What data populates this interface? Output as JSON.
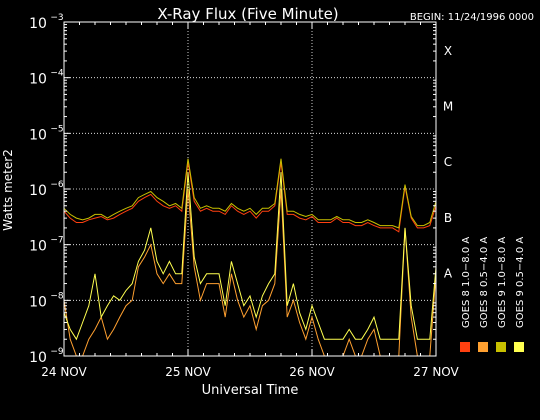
{
  "chart_data": {
    "type": "line",
    "title": "X-Ray Flux (Five Minute)",
    "begin_label": "BEGIN: 11/24/1996 0000",
    "ylabel": "Watts meter2",
    "xlabel": "Universal Time",
    "y_scale": "log",
    "ylim": [
      1e-09,
      0.001
    ],
    "x_range_days": [
      0,
      3
    ],
    "x_ticks": [
      {
        "day": 0,
        "label": "24 NOV"
      },
      {
        "day": 1,
        "label": "25 NOV"
      },
      {
        "day": 2,
        "label": "26 NOV"
      },
      {
        "day": 3,
        "label": "27 NOV"
      }
    ],
    "y_ticks": [
      {
        "exp": -9,
        "base": "10",
        "power": "−9"
      },
      {
        "exp": -8,
        "base": "10",
        "power": "−8"
      },
      {
        "exp": -7,
        "base": "10",
        "power": "−7"
      },
      {
        "exp": -6,
        "base": "10",
        "power": "−6"
      },
      {
        "exp": -5,
        "base": "10",
        "power": "−5"
      },
      {
        "exp": -4,
        "base": "10",
        "power": "−4"
      },
      {
        "exp": -3,
        "base": "10",
        "power": "−3"
      }
    ],
    "flare_classes": [
      {
        "label": "X",
        "exp": -4
      },
      {
        "label": "M",
        "exp": -5
      },
      {
        "label": "C",
        "exp": -6
      },
      {
        "label": "B",
        "exp": -7
      },
      {
        "label": "A",
        "exp": -8
      }
    ],
    "grid": true,
    "legend": [
      {
        "label": "GOES 8  0.5−4.0 A",
        "color": "#ffa030"
      },
      {
        "label": "GOES 9  0.5−4.0 A",
        "color": "#ffff50"
      },
      {
        "label": "GOES 8  1.0−8.0 A",
        "color": "#ff4010"
      },
      {
        "label": "GOES 9  1.0−8.0 A",
        "color": "#c8c000"
      }
    ],
    "series": [
      {
        "name": "GOES 8 1.0-8.0 A",
        "color": "#ff4010",
        "x": [
          0,
          0.05,
          0.1,
          0.15,
          0.2,
          0.25,
          0.3,
          0.35,
          0.4,
          0.45,
          0.5,
          0.55,
          0.6,
          0.65,
          0.7,
          0.75,
          0.8,
          0.85,
          0.9,
          0.95,
          1.0,
          1.05,
          1.1,
          1.15,
          1.2,
          1.25,
          1.3,
          1.35,
          1.4,
          1.45,
          1.5,
          1.55,
          1.6,
          1.65,
          1.7,
          1.75,
          1.8,
          1.85,
          1.9,
          1.95,
          2.0,
          2.05,
          2.1,
          2.15,
          2.2,
          2.25,
          2.3,
          2.35,
          2.4,
          2.45,
          2.5,
          2.55,
          2.6,
          2.65,
          2.7,
          2.75,
          2.8,
          2.85,
          2.9,
          2.95,
          3.0
        ],
        "y": [
          4e-07,
          3e-07,
          2.5e-07,
          2.5e-07,
          2.8e-07,
          3e-07,
          3.2e-07,
          2.8e-07,
          3e-07,
          3.5e-07,
          4e-07,
          4.5e-07,
          6e-07,
          7e-07,
          8e-07,
          6e-07,
          5e-07,
          4.5e-07,
          5e-07,
          4e-07,
          3e-06,
          6e-07,
          4e-07,
          4.5e-07,
          4e-07,
          4e-07,
          3.5e-07,
          5e-07,
          4e-07,
          3.5e-07,
          4e-07,
          3e-07,
          4e-07,
          4e-07,
          5e-07,
          3e-06,
          3.5e-07,
          3.5e-07,
          3e-07,
          2.8e-07,
          3.2e-07,
          2.5e-07,
          2.5e-07,
          2.5e-07,
          3e-07,
          2.5e-07,
          2.5e-07,
          2.2e-07,
          2.2e-07,
          2.5e-07,
          2.2e-07,
          2e-07,
          2e-07,
          2e-07,
          1.7e-07,
          1.1e-06,
          3e-07,
          2e-07,
          2e-07,
          2.2e-07,
          5e-07
        ]
      },
      {
        "name": "GOES 8 0.5-4.0 A",
        "color": "#ffa030",
        "x": [
          0,
          0.05,
          0.1,
          0.15,
          0.2,
          0.25,
          0.3,
          0.35,
          0.4,
          0.45,
          0.5,
          0.55,
          0.6,
          0.65,
          0.7,
          0.75,
          0.8,
          0.85,
          0.9,
          0.95,
          1.0,
          1.05,
          1.1,
          1.15,
          1.2,
          1.25,
          1.3,
          1.35,
          1.4,
          1.45,
          1.5,
          1.55,
          1.6,
          1.65,
          1.7,
          1.75,
          1.8,
          1.85,
          1.9,
          1.95,
          2.0,
          2.05,
          2.1,
          2.15,
          2.2,
          2.25,
          2.3,
          2.35,
          2.4,
          2.45,
          2.5,
          2.55,
          2.6,
          2.65,
          2.7,
          2.75,
          2.8,
          2.85,
          2.9,
          2.95,
          3.0
        ],
        "y": [
          1e-08,
          2e-09,
          1e-09,
          1e-09,
          2e-09,
          3e-09,
          5e-09,
          2e-09,
          3e-09,
          5e-09,
          8e-09,
          1e-08,
          4e-08,
          6e-08,
          1e-07,
          3e-08,
          2e-08,
          3e-08,
          2e-08,
          2e-08,
          1e-06,
          4e-08,
          1e-08,
          2e-08,
          2e-08,
          2e-08,
          5e-09,
          3e-08,
          1e-08,
          5e-09,
          8e-09,
          3e-09,
          8e-09,
          1e-08,
          2e-08,
          1e-06,
          5e-09,
          1e-08,
          4e-09,
          2e-09,
          5e-09,
          2e-09,
          1e-09,
          1e-09,
          1e-09,
          1e-09,
          2e-09,
          1e-09,
          1e-09,
          2e-09,
          3e-09,
          1e-09,
          1e-09,
          1e-09,
          1e-09,
          2e-07,
          5e-09,
          1e-09,
          1e-09,
          1e-09,
          3e-08
        ]
      },
      {
        "name": "GOES 9 1.0-8.0 A",
        "color": "#c8c000",
        "x": [
          0,
          0.05,
          0.1,
          0.15,
          0.2,
          0.25,
          0.3,
          0.35,
          0.4,
          0.45,
          0.5,
          0.55,
          0.6,
          0.65,
          0.7,
          0.75,
          0.8,
          0.85,
          0.9,
          0.95,
          1.0,
          1.05,
          1.1,
          1.15,
          1.2,
          1.25,
          1.3,
          1.35,
          1.4,
          1.45,
          1.5,
          1.55,
          1.6,
          1.65,
          1.7,
          1.75,
          1.8,
          1.85,
          1.9,
          1.95,
          2.0,
          2.05,
          2.1,
          2.15,
          2.2,
          2.25,
          2.3,
          2.35,
          2.4,
          2.45,
          2.5,
          2.55,
          2.6,
          2.65,
          2.7,
          2.75,
          2.8,
          2.85,
          2.9,
          2.95,
          3.0
        ],
        "y": [
          4.5e-07,
          3.5e-07,
          3e-07,
          2.8e-07,
          3e-07,
          3.5e-07,
          3.5e-07,
          3e-07,
          3.5e-07,
          4e-07,
          4.5e-07,
          5e-07,
          7e-07,
          8e-07,
          9e-07,
          7e-07,
          6e-07,
          5e-07,
          5.5e-07,
          4.5e-07,
          3.5e-06,
          7e-07,
          4.5e-07,
          5e-07,
          4.5e-07,
          4.5e-07,
          4e-07,
          5.5e-07,
          4.5e-07,
          4e-07,
          4.5e-07,
          3.5e-07,
          4.5e-07,
          4.5e-07,
          5.5e-07,
          3.5e-06,
          4e-07,
          4e-07,
          3.5e-07,
          3.2e-07,
          3.5e-07,
          2.8e-07,
          2.8e-07,
          2.8e-07,
          3.2e-07,
          2.8e-07,
          2.8e-07,
          2.5e-07,
          2.5e-07,
          2.8e-07,
          2.5e-07,
          2.2e-07,
          2.2e-07,
          2.2e-07,
          2e-07,
          1.2e-06,
          3.2e-07,
          2.2e-07,
          2.2e-07,
          2.5e-07,
          6e-07
        ]
      },
      {
        "name": "GOES 9 0.5-4.0 A",
        "color": "#ffff50",
        "x": [
          0,
          0.05,
          0.1,
          0.15,
          0.2,
          0.25,
          0.3,
          0.35,
          0.4,
          0.45,
          0.5,
          0.55,
          0.6,
          0.65,
          0.7,
          0.75,
          0.8,
          0.85,
          0.9,
          0.95,
          1.0,
          1.05,
          1.1,
          1.15,
          1.2,
          1.25,
          1.3,
          1.35,
          1.4,
          1.45,
          1.5,
          1.55,
          1.6,
          1.65,
          1.7,
          1.75,
          1.8,
          1.85,
          1.9,
          1.95,
          2.0,
          2.05,
          2.1,
          2.15,
          2.2,
          2.25,
          2.3,
          2.35,
          2.4,
          2.45,
          2.5,
          2.55,
          2.6,
          2.65,
          2.7,
          2.75,
          2.8,
          2.85,
          2.9,
          2.95,
          3.0
        ],
        "y": [
          6e-09,
          3e-09,
          2e-09,
          4e-09,
          8e-09,
          3e-08,
          5e-09,
          8e-09,
          1.2e-08,
          1e-08,
          1.5e-08,
          2e-08,
          5e-08,
          8e-08,
          2e-07,
          5e-08,
          3e-08,
          5e-08,
          3e-08,
          3e-08,
          2e-06,
          6e-08,
          2e-08,
          3e-08,
          3e-08,
          3e-08,
          8e-09,
          5e-08,
          2e-08,
          8e-09,
          1.2e-08,
          5e-09,
          1.2e-08,
          2e-08,
          3e-08,
          2e-06,
          8e-09,
          2e-08,
          6e-09,
          3e-09,
          8e-09,
          4e-09,
          2e-09,
          2e-09,
          2e-09,
          2e-09,
          3e-09,
          2e-09,
          2e-09,
          3e-09,
          5e-09,
          2e-09,
          2e-09,
          2e-09,
          2e-09,
          2e-07,
          8e-09,
          2e-09,
          2e-09,
          2e-09,
          4e-08
        ]
      }
    ]
  }
}
